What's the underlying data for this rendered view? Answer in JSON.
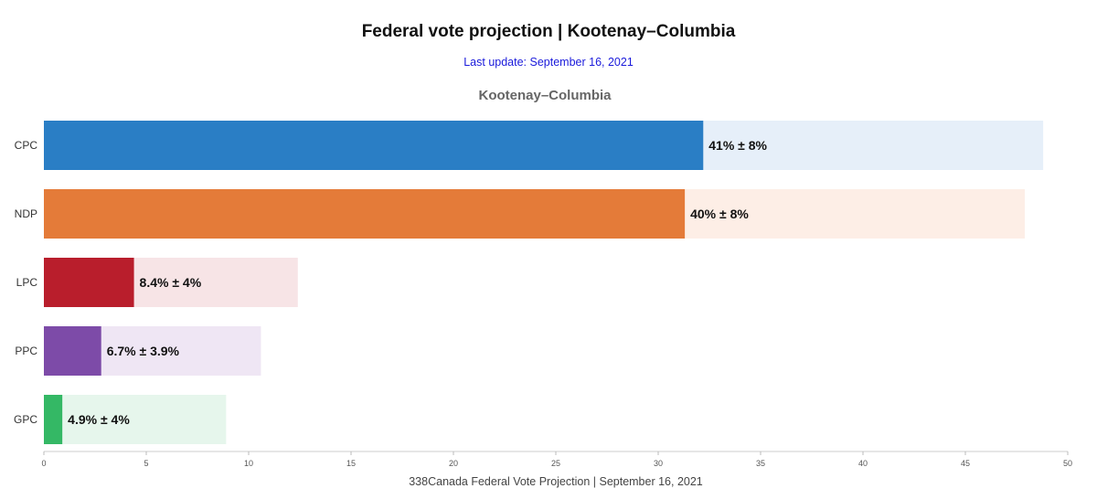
{
  "header": {
    "title": "Federal vote projection | Kootenay–Columbia",
    "update": "Last update: September 16, 2021"
  },
  "chart_data": {
    "type": "bar",
    "orientation": "horizontal",
    "title": "Kootenay–Columbia",
    "xlabel": "338Canada Federal Vote Projection | September 16, 2021",
    "ylabel": "",
    "xlim": [
      0,
      50
    ],
    "xticks": [
      0,
      5,
      10,
      15,
      20,
      25,
      30,
      35,
      40,
      45,
      50
    ],
    "grid": false,
    "categories": [
      "CPC",
      "NDP",
      "LPC",
      "PPC",
      "GPC"
    ],
    "series": [
      {
        "values": [
          32.2,
          31.3,
          4.4,
          2.8,
          0.9
        ],
        "colors": [
          "#2a7ec5",
          "#e47b39",
          "#b91e2c",
          "#7d4ba8",
          "#34b865"
        ]
      },
      {
        "values": [
          48.8,
          47.9,
          12.4,
          10.6,
          8.9
        ],
        "colors": [
          "#e6eff9",
          "#fdeee6",
          "#f7e4e6",
          "#efe6f4",
          "#e6f6ec"
        ]
      }
    ],
    "labels": [
      "41% ± 8%",
      "40% ± 8%",
      "8.4% ± 4%",
      "6.7% ± 3.9%",
      "4.9% ± 4%"
    ]
  }
}
